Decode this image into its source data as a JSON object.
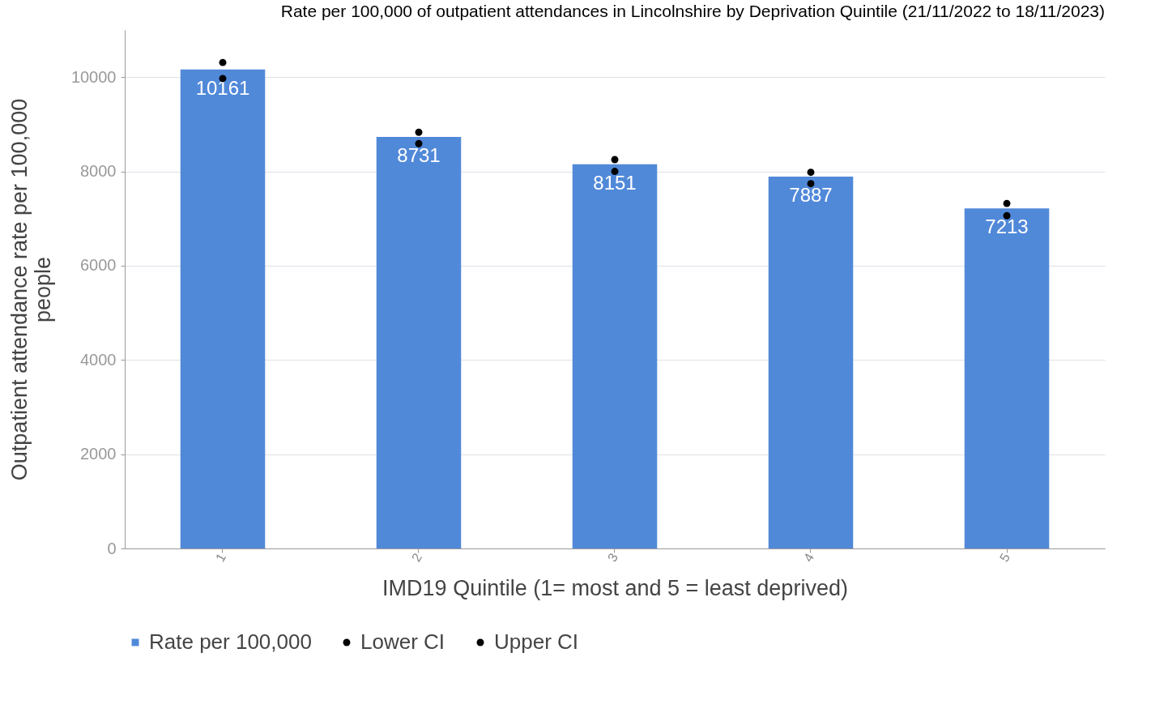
{
  "chart_data": {
    "type": "bar",
    "title": "Rate per 100,000 of outpatient attendances in Lincolnshire by Deprivation Quintile (21/11/2022 to 18/11/2023)",
    "xlabel": "IMD19 Quintile (1= most and 5 = least deprived)",
    "ylabel": "Outpatient attendance rate per 100,000 people",
    "categories": [
      "1",
      "2",
      "3",
      "4",
      "5"
    ],
    "series": [
      {
        "name": "Rate per 100,000",
        "color": "#5189d9",
        "values": [
          10161,
          8731,
          8151,
          7887,
          7213
        ],
        "value_labels": [
          "10161",
          "8731",
          "8151",
          "7887",
          "7213"
        ]
      },
      {
        "name": "Lower CI",
        "type": "scatter",
        "color": "#000000",
        "values": [
          9970,
          8590,
          8000,
          7740,
          7060
        ]
      },
      {
        "name": "Upper CI",
        "type": "scatter",
        "color": "#000000",
        "values": [
          10310,
          8830,
          8250,
          7980,
          7320
        ]
      }
    ],
    "ylim": [
      0,
      11000
    ],
    "yticks": [
      0,
      2000,
      4000,
      6000,
      8000,
      10000
    ],
    "grid": "y",
    "legend": "bottom",
    "marker": "circle"
  }
}
